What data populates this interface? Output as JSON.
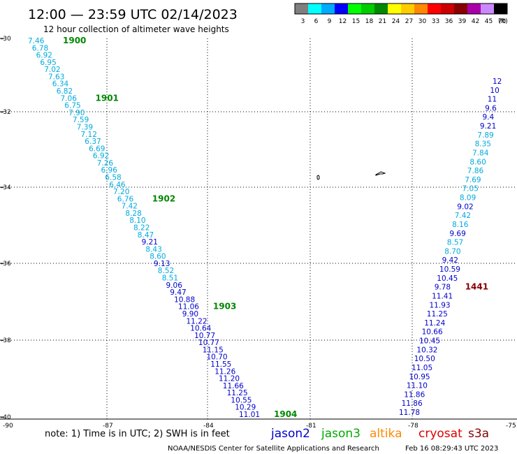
{
  "header": {
    "title": "12:00 — 23:59 UTC 02/14/2023",
    "subtitle": "12 hour collection of altimeter wave heights"
  },
  "legend": {
    "unit_label": "(ft)",
    "bins": [
      {
        "label": "3",
        "color": "#7f7f7f"
      },
      {
        "label": "6",
        "color": "#00ffff"
      },
      {
        "label": "9",
        "color": "#00aaff"
      },
      {
        "label": "12",
        "color": "#0000ff"
      },
      {
        "label": "15",
        "color": "#00ff00"
      },
      {
        "label": "18",
        "color": "#00cc00"
      },
      {
        "label": "21",
        "color": "#008800"
      },
      {
        "label": "24",
        "color": "#ffff00"
      },
      {
        "label": "27",
        "color": "#ffcc00"
      },
      {
        "label": "30",
        "color": "#ff8800"
      },
      {
        "label": "33",
        "color": "#ff0000"
      },
      {
        "label": "36",
        "color": "#cc0000"
      },
      {
        "label": "39",
        "color": "#880000"
      },
      {
        "label": "42",
        "color": "#aa00aa"
      },
      {
        "label": "45",
        "color": "#cc88ff"
      },
      {
        "label": "70",
        "color": "#000000"
      }
    ]
  },
  "axes": {
    "lat_ticks": [
      "-30",
      "-32",
      "-34",
      "-36",
      "-38",
      "-40"
    ],
    "lon_ticks": [
      "-90",
      "-87",
      "-84",
      "-81",
      "-78",
      "-75"
    ]
  },
  "tracks": {
    "track_west": {
      "color": "#00aadd",
      "values": [
        "7.46",
        "6.78",
        "6.92",
        "6.95",
        "7.02",
        "7.63",
        "6.34",
        "6.82",
        "7.06",
        "6.75",
        "7.90",
        "7.59",
        "7.39",
        "7.12",
        "6.37",
        "6.69",
        "6.92",
        "7.26",
        "6.96",
        "6.58",
        "6.46",
        "7.20",
        "6.76",
        "7.42",
        "8.28",
        "8.10",
        "8.22",
        "8.47",
        "9.21",
        "8.43",
        "8.60",
        "9.13",
        "8.52",
        "8.51",
        "9.06",
        "9.47",
        "10.88",
        "11.06",
        "9.90",
        "11.22",
        "10.64",
        "10.77",
        "10.77",
        "11.15",
        "10.70",
        "11.55",
        "11.26",
        "11.20",
        "11.66",
        "11.25",
        "10.55",
        "10.29",
        "11.01"
      ],
      "time_labels": [
        {
          "index": 0,
          "text": "1900"
        },
        {
          "index": 8,
          "text": "1901"
        },
        {
          "index": 22,
          "text": "1902"
        },
        {
          "index": 37,
          "text": "1903"
        },
        {
          "index": 52,
          "text": "1904"
        }
      ]
    },
    "track_east": {
      "color": "#00aadd",
      "values": [
        "12",
        "10",
        "11",
        "9.6",
        "9.4",
        "9.21",
        "7.89",
        "8.35",
        "7.84",
        "8.60",
        "7.86",
        "7.69",
        "7.05",
        "8.09",
        "9.02",
        "7.42",
        "8.16",
        "9.69",
        "8.57",
        "8.70",
        "9.42",
        "10.59",
        "10.45",
        "9.78",
        "11.41",
        "11.93",
        "11.25",
        "11.24",
        "10.66",
        "10.45",
        "10.32",
        "10.50",
        "11.05",
        "10.95",
        "11.10",
        "11.86",
        "11.86",
        "11.78"
      ],
      "time_labels": [
        {
          "index": 23,
          "text": "1441"
        }
      ]
    }
  },
  "footer": {
    "note": "note:  1) Time is in UTC;  2) SWH is in feet",
    "satellites": [
      {
        "name": "jason2",
        "color": "#0000cc"
      },
      {
        "name": "jason3",
        "color": "#00aa00"
      },
      {
        "name": "altika",
        "color": "#ff8800"
      },
      {
        "name": "cryosat",
        "color": "#dd0000"
      },
      {
        "name": "s3a",
        "color": "#880000"
      }
    ],
    "credit": "NOAA/NESDIS Center for Satellite Applications and Research",
    "timestamp": "Feb 16 08:29:43 UTC 2023"
  }
}
